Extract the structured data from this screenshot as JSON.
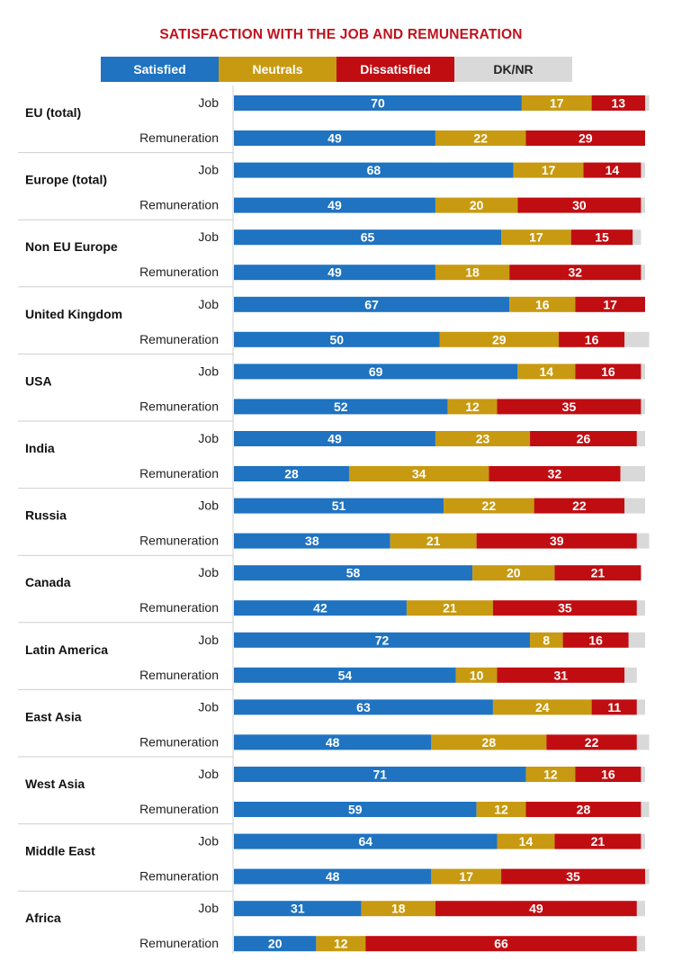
{
  "chart_data": {
    "type": "bar",
    "orientation": "horizontal",
    "stacked": true,
    "title": "SATISFACTION WITH THE JOB AND REMUNERATION",
    "legend_position": "top",
    "xlim": [
      0,
      100
    ],
    "grid": false,
    "series": [
      {
        "name": "Satisfied",
        "color": "#1f73c1"
      },
      {
        "name": "Neutrals",
        "color": "#c89a12"
      },
      {
        "name": "Dissatisfied",
        "color": "#c00d12"
      },
      {
        "name": "DK/NR",
        "color": "#d9d9d9"
      }
    ],
    "row_labels": [
      "Job",
      "Remuneration"
    ],
    "groups": [
      {
        "name": "EU (total)",
        "rows": [
          [
            70,
            17,
            13,
            1
          ],
          [
            49,
            22,
            29,
            0
          ]
        ]
      },
      {
        "name": "Europe (total)",
        "rows": [
          [
            68,
            17,
            14,
            1
          ],
          [
            49,
            20,
            30,
            1
          ]
        ]
      },
      {
        "name": "Non EU Europe",
        "rows": [
          [
            65,
            17,
            15,
            2
          ],
          [
            49,
            18,
            32,
            1
          ]
        ]
      },
      {
        "name": "United Kingdom",
        "rows": [
          [
            67,
            16,
            17,
            0
          ],
          [
            50,
            29,
            16,
            6
          ]
        ]
      },
      {
        "name": "USA",
        "rows": [
          [
            69,
            14,
            16,
            1
          ],
          [
            52,
            12,
            35,
            1
          ]
        ]
      },
      {
        "name": "India",
        "rows": [
          [
            49,
            23,
            26,
            2
          ],
          [
            28,
            34,
            32,
            6
          ]
        ]
      },
      {
        "name": "Russia",
        "rows": [
          [
            51,
            22,
            22,
            5
          ],
          [
            38,
            21,
            39,
            3
          ]
        ]
      },
      {
        "name": "Canada",
        "rows": [
          [
            58,
            20,
            21,
            0
          ],
          [
            42,
            21,
            35,
            2
          ]
        ]
      },
      {
        "name": "Latin America",
        "rows": [
          [
            72,
            8,
            16,
            4
          ],
          [
            54,
            10,
            31,
            3
          ]
        ]
      },
      {
        "name": "East Asia",
        "rows": [
          [
            63,
            24,
            11,
            2
          ],
          [
            48,
            28,
            22,
            3
          ]
        ]
      },
      {
        "name": "West Asia",
        "rows": [
          [
            71,
            12,
            16,
            1
          ],
          [
            59,
            12,
            28,
            2
          ]
        ]
      },
      {
        "name": "Middle East",
        "rows": [
          [
            64,
            14,
            21,
            1
          ],
          [
            48,
            17,
            35,
            1
          ]
        ]
      },
      {
        "name": "Africa",
        "rows": [
          [
            31,
            18,
            49,
            2
          ],
          [
            20,
            12,
            66,
            2
          ]
        ]
      }
    ]
  }
}
